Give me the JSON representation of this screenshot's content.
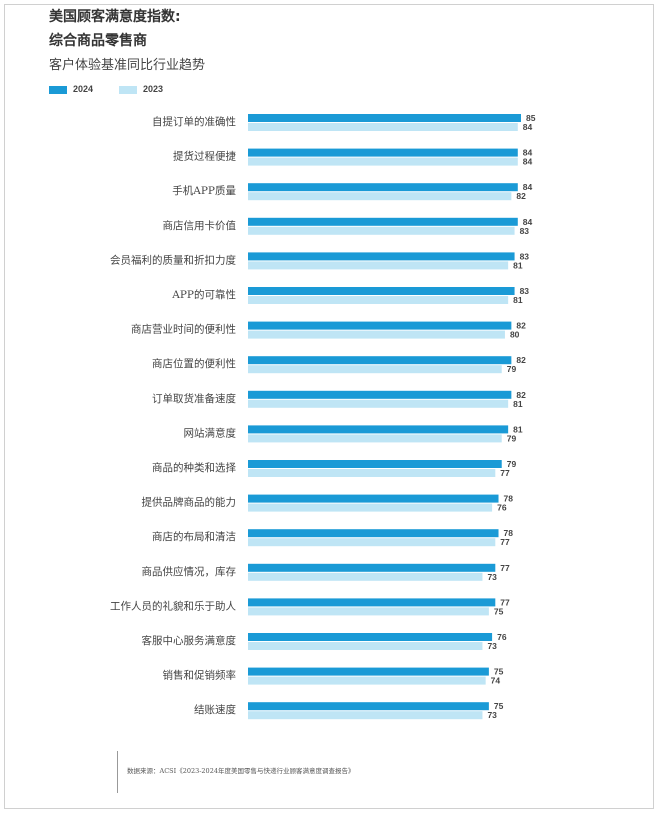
{
  "header": {
    "title_line1": "美国顾客满意度指数:",
    "title_line2": "综合商品零售商",
    "subtitle": "客户体验基准同比行业趋势"
  },
  "colors": {
    "2024": "#1a9ad6",
    "2023": "#bfe5f5",
    "value_text": "#444444",
    "label_text": "#444444"
  },
  "chart_data": {
    "type": "bar",
    "orientation": "horizontal",
    "categories": [
      "自提订单的准确性",
      "提货过程便捷",
      "手机APP质量",
      "商店信用卡价值",
      "会员福利的质量和折扣力度",
      "APP的可靠性",
      "商店营业时间的便利性",
      "商店位置的便利性",
      "订单取货准备速度",
      "网站满意度",
      "商品的种类和选择",
      "提供品牌商品的能力",
      "商店的布局和清洁",
      "商品供应情况，库存",
      "工作人员的礼貌和乐于助人",
      "客服中心服务满意度",
      "销售和促销频率",
      "结账速度"
    ],
    "series": [
      {
        "name": "2024",
        "values": [
          85,
          84,
          84,
          84,
          83,
          83,
          82,
          82,
          82,
          81,
          79,
          78,
          78,
          77,
          77,
          76,
          75,
          75
        ]
      },
      {
        "name": "2023",
        "values": [
          84,
          84,
          82,
          83,
          81,
          81,
          80,
          79,
          81,
          79,
          77,
          76,
          77,
          73,
          75,
          73,
          74,
          73
        ]
      }
    ],
    "xlim": [
      0,
      85
    ],
    "grid": false,
    "legend": "top-left",
    "data_labels": true
  },
  "legend": {
    "label_2024": "2024",
    "label_2023": "2023"
  },
  "source": "数据来源：ACSI《2023-2024年度美国零售与快递行业顾客满意度调查报告》"
}
